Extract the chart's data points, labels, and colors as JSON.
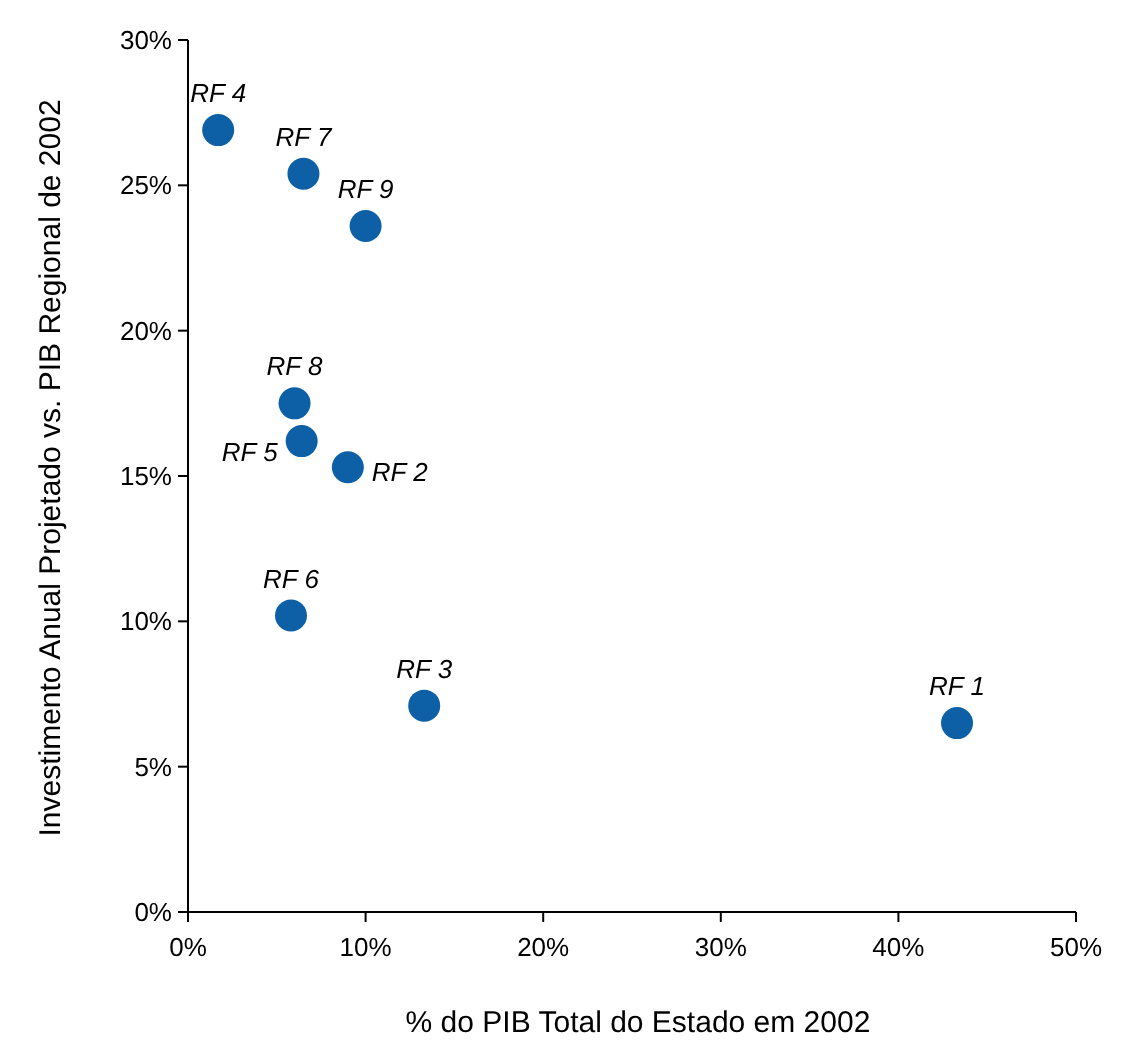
{
  "chart_data": {
    "type": "scatter",
    "xlabel": "% do PIB Total do Estado em 2002",
    "ylabel": "Investimento Anual Projetado vs. PIB Regional de 2002",
    "x": [
      43.3,
      9.0,
      13.3,
      1.7,
      6.4,
      5.8,
      6.5,
      6.0,
      10.0
    ],
    "series": [
      {
        "color": "#0d5fa6",
        "values": [
          6.5,
          15.3,
          7.1,
          26.9,
          16.2,
          10.2,
          25.4,
          17.5,
          23.6
        ]
      }
    ],
    "xlim": [
      0,
      50
    ],
    "xticks": [
      {
        "value": 0,
        "label": "0%"
      },
      {
        "value": 10,
        "label": "10%"
      },
      {
        "value": 20,
        "label": "20%"
      },
      {
        "value": 30,
        "label": "30%"
      },
      {
        "value": 40,
        "label": "40%"
      },
      {
        "value": 50,
        "label": "50%"
      }
    ],
    "ylim": [
      0,
      30
    ],
    "yticks": [
      {
        "value": 0,
        "label": "0%"
      },
      {
        "value": 5,
        "label": "5%"
      },
      {
        "value": 10,
        "label": "10%"
      },
      {
        "value": 15,
        "label": "15%"
      },
      {
        "value": 20,
        "label": "20%"
      },
      {
        "value": 25,
        "label": "25%"
      },
      {
        "value": 30,
        "label": "30%"
      }
    ],
    "grid": false,
    "marker": "circle",
    "annotations": [
      {
        "text": "RF 1",
        "x": 43.3,
        "y": 6.5
      },
      {
        "text": "RF 2",
        "x": 9.0,
        "y": 15.3
      },
      {
        "text": "RF 3",
        "x": 13.3,
        "y": 7.1
      },
      {
        "text": "RF 4",
        "x": 1.7,
        "y": 26.9
      },
      {
        "text": "RF 5",
        "x": 6.4,
        "y": 16.2
      },
      {
        "text": "RF 6",
        "x": 5.8,
        "y": 10.2
      },
      {
        "text": "RF 7",
        "x": 6.5,
        "y": 25.4
      },
      {
        "text": "RF 8",
        "x": 6.0,
        "y": 17.5
      },
      {
        "text": "RF 9",
        "x": 10.0,
        "y": 23.6
      }
    ]
  }
}
